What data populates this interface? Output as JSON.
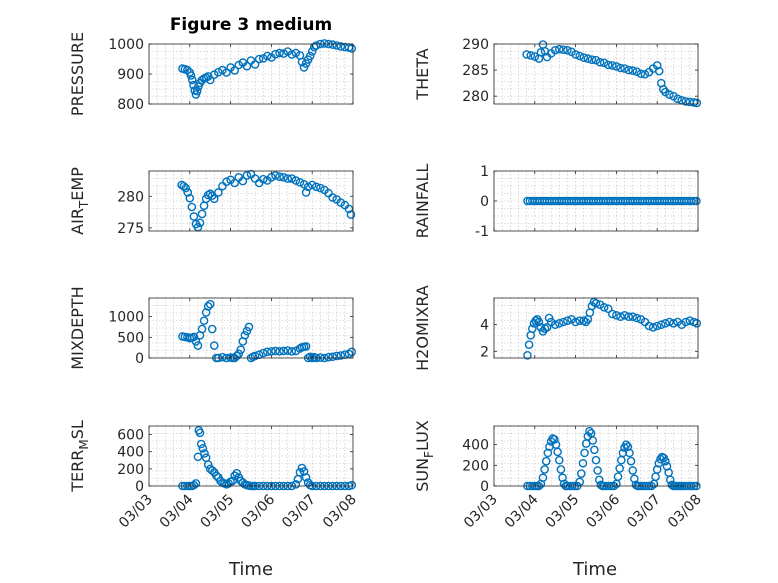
{
  "figure": {
    "title": "Figure 3 medium",
    "x_tick_labels": [
      "03/03",
      "03/04",
      "03/05",
      "03/06",
      "03/07",
      "03/08"
    ],
    "x_label": "Time",
    "marker_color": "#0072BD"
  },
  "chart_data": [
    {
      "id": "pressure",
      "type": "scatter",
      "ylabel": "PRESSURE",
      "ylim": [
        800,
        1000
      ],
      "yticks": [
        800,
        900,
        1000
      ],
      "ytick_labels": [
        "800",
        "900",
        "1000"
      ],
      "xlim": [
        0,
        5
      ],
      "grid": true,
      "x": [
        0.82,
        0.88,
        0.94,
        1.0,
        1.03,
        1.06,
        1.09,
        1.12,
        1.15,
        1.18,
        1.21,
        1.25,
        1.3,
        1.35,
        1.4,
        1.45,
        1.5,
        1.6,
        1.7,
        1.8,
        1.9,
        2.0,
        2.1,
        2.2,
        2.3,
        2.4,
        2.5,
        2.6,
        2.7,
        2.8,
        2.9,
        3.0,
        3.1,
        3.2,
        3.3,
        3.4,
        3.5,
        3.6,
        3.7,
        3.75,
        3.8,
        3.85,
        3.9,
        3.95,
        4.0,
        4.05,
        4.1,
        4.2,
        4.3,
        4.4,
        4.5,
        4.6,
        4.7,
        4.8,
        4.9,
        4.97
      ],
      "y": [
        918,
        916,
        913,
        905,
        895,
        880,
        863,
        845,
        832,
        843,
        858,
        870,
        880,
        885,
        888,
        892,
        880,
        898,
        906,
        913,
        905,
        922,
        912,
        930,
        938,
        926,
        945,
        932,
        950,
        952,
        960,
        955,
        966,
        970,
        968,
        975,
        965,
        970,
        962,
        940,
        922,
        935,
        948,
        960,
        975,
        990,
        995,
        1000,
        1002,
        1000,
        998,
        995,
        992,
        990,
        988,
        985
      ]
    },
    {
      "id": "theta",
      "type": "scatter",
      "ylabel": "THETA",
      "ylim": [
        278.5,
        290
      ],
      "yticks": [
        280,
        285,
        290
      ],
      "ytick_labels": [
        "280",
        "285",
        "290"
      ],
      "xlim": [
        0,
        5
      ],
      "grid": true,
      "x": [
        0.8,
        0.9,
        1.0,
        1.1,
        1.15,
        1.2,
        1.25,
        1.3,
        1.4,
        1.5,
        1.6,
        1.7,
        1.8,
        1.9,
        2.0,
        2.1,
        2.2,
        2.3,
        2.4,
        2.5,
        2.6,
        2.7,
        2.8,
        2.9,
        3.0,
        3.1,
        3.2,
        3.3,
        3.4,
        3.5,
        3.6,
        3.7,
        3.8,
        3.9,
        4.0,
        4.05,
        4.1,
        4.15,
        4.2,
        4.3,
        4.4,
        4.5,
        4.6,
        4.7,
        4.8,
        4.9,
        4.97
      ],
      "y": [
        288,
        287.8,
        287.6,
        287.2,
        288.4,
        289.9,
        288.6,
        287.5,
        288.2,
        288.8,
        289,
        288.9,
        288.8,
        288.5,
        288,
        287.7,
        287.4,
        287.2,
        287,
        286.9,
        286.5,
        286.4,
        286,
        285.9,
        285.7,
        285.4,
        285.3,
        285,
        284.9,
        284.7,
        284.3,
        284.2,
        284.6,
        285.3,
        285.9,
        284.8,
        282.5,
        281.3,
        280.8,
        280.3,
        280,
        279.5,
        279.2,
        279,
        278.9,
        278.8,
        278.7
      ]
    },
    {
      "id": "air-temp",
      "type": "scatter",
      "ylabel": "AIR",
      "ylabel_sub": "T",
      "ylabel_tail": "EMP",
      "ylim": [
        274.5,
        284
      ],
      "yticks": [
        275,
        280
      ],
      "ytick_labels": [
        "275",
        "280"
      ],
      "xlim": [
        0,
        5
      ],
      "grid": true,
      "x": [
        0.8,
        0.85,
        0.9,
        0.95,
        1.0,
        1.05,
        1.1,
        1.15,
        1.2,
        1.25,
        1.3,
        1.35,
        1.4,
        1.45,
        1.5,
        1.55,
        1.6,
        1.7,
        1.8,
        1.9,
        2.0,
        2.1,
        2.2,
        2.3,
        2.4,
        2.5,
        2.6,
        2.7,
        2.8,
        2.9,
        3.0,
        3.1,
        3.2,
        3.3,
        3.4,
        3.5,
        3.6,
        3.7,
        3.8,
        3.85,
        3.9,
        4.0,
        4.1,
        4.2,
        4.3,
        4.4,
        4.5,
        4.6,
        4.7,
        4.8,
        4.9,
        4.95
      ],
      "y": [
        281.8,
        281.6,
        281.3,
        280.6,
        279.7,
        278.3,
        276.8,
        275.6,
        275.1,
        275.8,
        277.2,
        278.5,
        279.6,
        280.2,
        280.4,
        280.1,
        279.6,
        280.6,
        281.6,
        282.3,
        282.6,
        282.1,
        283,
        282.4,
        283.3,
        283.5,
        282.8,
        282.1,
        282.7,
        282.5,
        283,
        283.3,
        283.1,
        283,
        282.8,
        282.8,
        282.5,
        282.2,
        281.9,
        280.6,
        281.5,
        281.8,
        281.5,
        281.3,
        281,
        280.5,
        279.8,
        279.5,
        279,
        278.6,
        278,
        277.1
      ]
    },
    {
      "id": "rainfall",
      "type": "scatter",
      "ylabel": "RAINFALL",
      "ylim": [
        -1,
        1
      ],
      "yticks": [
        -1,
        0,
        1
      ],
      "ytick_labels": [
        "-1",
        "0",
        "1"
      ],
      "xlim": [
        0,
        5
      ],
      "grid": true,
      "x_start": 0.82,
      "x_end": 4.98,
      "x_step": 0.06,
      "constant_y": 0
    },
    {
      "id": "mixdepth",
      "type": "scatter",
      "ylabel": "MIXDEPTH",
      "ylim": [
        0,
        1450
      ],
      "yticks": [
        0,
        500,
        1000
      ],
      "ytick_labels": [
        "0",
        "500",
        "1000"
      ],
      "xlim": [
        0,
        5
      ],
      "grid": true,
      "x": [
        0.82,
        0.88,
        0.94,
        1.0,
        1.05,
        1.1,
        1.15,
        1.2,
        1.25,
        1.3,
        1.35,
        1.4,
        1.45,
        1.5,
        1.55,
        1.6,
        1.65,
        1.7,
        1.8,
        1.9,
        2.0,
        2.05,
        2.1,
        2.15,
        2.2,
        2.25,
        2.3,
        2.35,
        2.4,
        2.45,
        2.5,
        2.55,
        2.6,
        2.7,
        2.8,
        2.9,
        3.0,
        3.1,
        3.2,
        3.3,
        3.4,
        3.5,
        3.6,
        3.7,
        3.75,
        3.8,
        3.85,
        3.9,
        3.95,
        4.0,
        4.05,
        4.1,
        4.2,
        4.3,
        4.4,
        4.5,
        4.6,
        4.7,
        4.8,
        4.9,
        4.97
      ],
      "y": [
        520,
        510,
        500,
        480,
        490,
        510,
        400,
        300,
        550,
        700,
        900,
        1100,
        1250,
        1300,
        700,
        300,
        0,
        0,
        20,
        0,
        10,
        0,
        0,
        50,
        100,
        200,
        400,
        550,
        650,
        750,
        0,
        30,
        50,
        80,
        120,
        150,
        160,
        170,
        160,
        170,
        180,
        160,
        170,
        230,
        260,
        270,
        280,
        0,
        30,
        0,
        20,
        0,
        10,
        0,
        20,
        30,
        50,
        60,
        80,
        100,
        150
      ]
    },
    {
      "id": "h2omixra",
      "type": "scatter",
      "ylabel": "H2OMIXRA",
      "ylim": [
        1.5,
        6
      ],
      "yticks": [
        2,
        4
      ],
      "ytick_labels": [
        "2",
        "4"
      ],
      "xlim": [
        0,
        5
      ],
      "grid": true,
      "x": [
        0.82,
        0.86,
        0.9,
        0.94,
        0.98,
        1.02,
        1.06,
        1.1,
        1.15,
        1.2,
        1.25,
        1.3,
        1.35,
        1.4,
        1.5,
        1.6,
        1.7,
        1.8,
        1.9,
        2.0,
        2.1,
        2.2,
        2.25,
        2.3,
        2.35,
        2.4,
        2.45,
        2.5,
        2.6,
        2.7,
        2.8,
        2.9,
        3.0,
        3.1,
        3.2,
        3.3,
        3.4,
        3.5,
        3.6,
        3.7,
        3.8,
        3.9,
        4.0,
        4.1,
        4.2,
        4.3,
        4.4,
        4.5,
        4.6,
        4.7,
        4.8,
        4.9,
        4.97
      ],
      "y": [
        1.7,
        2.5,
        3.2,
        3.7,
        4.1,
        4.3,
        4.4,
        4.2,
        3.8,
        3.5,
        3.7,
        3.8,
        4.5,
        4.2,
        4.0,
        4.1,
        4.2,
        4.3,
        4.4,
        4.2,
        4.3,
        4.3,
        4.2,
        4.4,
        4.9,
        5.4,
        5.7,
        5.6,
        5.5,
        5.3,
        5.2,
        4.8,
        4.7,
        4.6,
        4.7,
        4.6,
        4.6,
        4.5,
        4.4,
        4.2,
        3.9,
        3.8,
        3.9,
        4.0,
        4.1,
        4.2,
        4.1,
        4.2,
        4.0,
        4.2,
        4.3,
        4.2,
        4.1
      ]
    },
    {
      "id": "terr-msl",
      "type": "scatter",
      "ylabel": "TERR",
      "ylabel_sub": "M",
      "ylabel_tail": "SL",
      "ylim": [
        0,
        700
      ],
      "yticks": [
        0,
        200,
        400,
        600
      ],
      "ytick_labels": [
        "0",
        "200",
        "400",
        "600"
      ],
      "xlim": [
        0,
        5
      ],
      "grid": true,
      "x": [
        0.82,
        0.88,
        0.94,
        1.0,
        1.05,
        1.1,
        1.15,
        1.2,
        1.22,
        1.25,
        1.28,
        1.32,
        1.36,
        1.4,
        1.45,
        1.5,
        1.55,
        1.6,
        1.65,
        1.7,
        1.75,
        1.8,
        1.85,
        1.9,
        1.95,
        2.0,
        2.05,
        2.1,
        2.15,
        2.2,
        2.25,
        2.3,
        2.35,
        2.4,
        2.45,
        2.5,
        2.55,
        2.6,
        2.7,
        2.8,
        2.9,
        3.0,
        3.1,
        3.2,
        3.3,
        3.4,
        3.5,
        3.6,
        3.65,
        3.7,
        3.75,
        3.8,
        3.85,
        3.9,
        3.95,
        4.0,
        4.1,
        4.2,
        4.3,
        4.4,
        4.5,
        4.6,
        4.7,
        4.8,
        4.9,
        4.97
      ],
      "y": [
        0,
        0,
        0,
        0,
        0,
        10,
        30,
        340,
        650,
        620,
        490,
        440,
        380,
        330,
        250,
        200,
        180,
        160,
        120,
        100,
        60,
        40,
        30,
        20,
        30,
        50,
        60,
        120,
        150,
        100,
        60,
        40,
        20,
        10,
        5,
        0,
        0,
        0,
        0,
        0,
        0,
        0,
        0,
        0,
        0,
        0,
        0,
        20,
        80,
        160,
        210,
        170,
        100,
        40,
        10,
        0,
        0,
        0,
        0,
        0,
        0,
        0,
        0,
        0,
        0,
        10
      ]
    },
    {
      "id": "sun-flux",
      "type": "scatter",
      "ylabel": "SUN",
      "ylabel_sub": "F",
      "ylabel_tail": "LUX",
      "ylim": [
        0,
        580
      ],
      "yticks": [
        0,
        200,
        400
      ],
      "ytick_labels": [
        "0",
        "200",
        "400"
      ],
      "xlim": [
        0,
        5
      ],
      "grid": true,
      "x": [
        0.82,
        0.88,
        0.94,
        1.0,
        1.05,
        1.1,
        1.15,
        1.2,
        1.24,
        1.28,
        1.32,
        1.36,
        1.4,
        1.44,
        1.48,
        1.52,
        1.56,
        1.6,
        1.64,
        1.68,
        1.72,
        1.76,
        1.8,
        1.86,
        1.92,
        1.98,
        2.04,
        2.1,
        2.14,
        2.18,
        2.22,
        2.26,
        2.3,
        2.34,
        2.38,
        2.42,
        2.46,
        2.5,
        2.54,
        2.58,
        2.62,
        2.66,
        2.7,
        2.76,
        2.82,
        2.88,
        2.94,
        3.0,
        3.04,
        3.08,
        3.12,
        3.16,
        3.2,
        3.24,
        3.28,
        3.32,
        3.36,
        3.4,
        3.44,
        3.48,
        3.52,
        3.56,
        3.62,
        3.68,
        3.74,
        3.8,
        3.86,
        3.92,
        3.96,
        4.0,
        4.04,
        4.08,
        4.12,
        4.16,
        4.2,
        4.24,
        4.28,
        4.32,
        4.36,
        4.4,
        4.44,
        4.48,
        4.52,
        4.56,
        4.6,
        4.66,
        4.72,
        4.78,
        4.84,
        4.9,
        4.96
      ],
      "y": [
        0,
        0,
        0,
        0,
        0,
        0,
        20,
        80,
        160,
        240,
        320,
        380,
        430,
        460,
        450,
        400,
        330,
        250,
        160,
        80,
        20,
        0,
        0,
        0,
        0,
        0,
        0,
        40,
        120,
        220,
        320,
        410,
        480,
        530,
        510,
        440,
        350,
        250,
        150,
        60,
        10,
        0,
        0,
        0,
        0,
        0,
        0,
        20,
        90,
        170,
        250,
        320,
        370,
        400,
        380,
        320,
        240,
        150,
        70,
        10,
        0,
        0,
        0,
        0,
        0,
        0,
        0,
        20,
        90,
        160,
        220,
        260,
        280,
        270,
        240,
        190,
        130,
        60,
        10,
        0,
        0,
        0,
        0,
        0,
        0,
        0,
        0,
        0,
        0,
        0,
        0
      ]
    }
  ]
}
